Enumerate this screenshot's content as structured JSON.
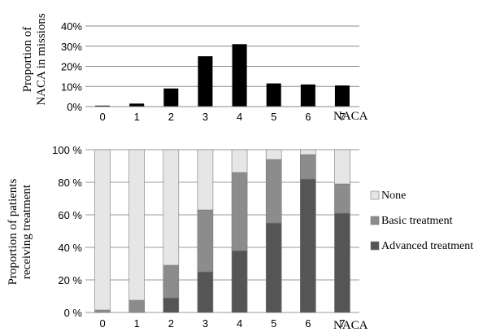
{
  "chart_data": [
    {
      "type": "bar",
      "ylabel_lines": [
        "Proportion of",
        "NACA in missions"
      ],
      "xlabel": "NACA",
      "categories": [
        "0",
        "1",
        "2",
        "3",
        "4",
        "5",
        "6",
        "7"
      ],
      "values": [
        0.5,
        1.5,
        9,
        25,
        31,
        11.5,
        11,
        10.5
      ],
      "ylim": [
        0,
        40
      ],
      "yticks": [
        "0%",
        "10%",
        "20%",
        "30%",
        "40%"
      ],
      "grid": true,
      "colors": {
        "bar": "#000000",
        "grid": "#888888"
      }
    },
    {
      "type": "bar",
      "stacked": true,
      "ylabel_lines": [
        "Proportion of patients",
        "receiving treatment"
      ],
      "xlabel": "NACA",
      "categories": [
        "0",
        "1",
        "2",
        "3",
        "4",
        "5",
        "6",
        "7"
      ],
      "ylim": [
        0,
        100
      ],
      "yticks": [
        "0 %",
        "20 %",
        "40 %",
        "60 %",
        "80 %",
        "100 %"
      ],
      "grid": true,
      "legend_position": "right",
      "series": [
        {
          "name": "Advanced treatment",
          "color": "#555555",
          "values": [
            0,
            0,
            9,
            25,
            38,
            55,
            82,
            61
          ]
        },
        {
          "name": "Basic treatment",
          "color": "#8c8c8c",
          "values": [
            1.5,
            7.5,
            20,
            38,
            48,
            39,
            15,
            18
          ]
        },
        {
          "name": "None",
          "color": "#e6e6e6",
          "values": [
            98.5,
            92.5,
            71,
            37,
            14,
            6,
            3,
            21
          ]
        }
      ],
      "legend_order": [
        "None",
        "Basic treatment",
        "Advanced treatment"
      ]
    }
  ]
}
